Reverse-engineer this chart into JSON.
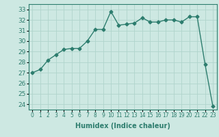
{
  "x": [
    0,
    1,
    2,
    3,
    4,
    5,
    6,
    7,
    8,
    9,
    10,
    11,
    12,
    13,
    14,
    15,
    16,
    17,
    18,
    19,
    20,
    21,
    22,
    23
  ],
  "y": [
    27.0,
    27.3,
    28.2,
    28.7,
    29.2,
    29.3,
    29.3,
    30.0,
    31.1,
    31.1,
    32.8,
    31.5,
    31.6,
    31.7,
    32.2,
    31.8,
    31.8,
    32.0,
    32.0,
    31.8,
    32.3,
    32.3,
    27.8,
    23.8
  ],
  "line_color": "#2d7d6e",
  "marker": "D",
  "markersize": 2.5,
  "linewidth": 1.0,
  "xlabel": "Humidex (Indice chaleur)",
  "xlabel_fontsize": 7,
  "xtick_fontsize": 5.5,
  "ytick_fontsize": 6.5,
  "ylim": [
    23.5,
    33.5
  ],
  "yticks": [
    24,
    25,
    26,
    27,
    28,
    29,
    30,
    31,
    32,
    33
  ],
  "xlim": [
    -0.5,
    23.5
  ],
  "bg_color": "#cde8e2",
  "grid_color": "#b0d4cc",
  "spine_color": "#2d7d6e"
}
